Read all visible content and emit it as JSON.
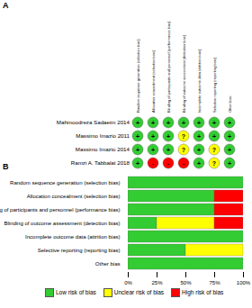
{
  "panel_a": {
    "title": "A",
    "domains": [
      "Random sequence generation (selection bias)",
      "Allocation concealment (selection bias)",
      "Blinding of participants and personnel (performance bias)",
      "Blinding of outcome assessment (detection bias)",
      "Incomplete outcome data (attrition bias)",
      "Selective reporting (reporting bias)",
      "Other bias"
    ],
    "studies": [
      {
        "name": "Mahmoodreza Sadaeim 2014",
        "judgements": [
          "+",
          "+",
          "+",
          "+",
          "+",
          "+",
          "+"
        ]
      },
      {
        "name": "Massimo Imazio 2011",
        "judgements": [
          "+",
          "+",
          "+",
          "?",
          "+",
          "+",
          "+"
        ]
      },
      {
        "name": "Massimo Imazio 2014",
        "judgements": [
          "+",
          "+",
          "+",
          "?",
          "+",
          "?",
          "+"
        ]
      },
      {
        "name": "Ramzi A. Tabbalat 2018",
        "judgements": [
          "+",
          "-",
          "-",
          "-",
          "+",
          "?",
          "+"
        ]
      }
    ],
    "colors": {
      "+": "#33cc33",
      "?": "#ffff00",
      "-": "#ff0000"
    }
  },
  "chart_data": {
    "type": "bar",
    "title": "B",
    "orientation": "horizontal",
    "stacked": true,
    "categories": [
      "Random sequence generation (selection bias)",
      "Allocation concealment (selection bias)",
      "Blinding of participants and personnel (performance bias)",
      "Blinding of outcome assessment (detection bias)",
      "Incomplete outcome data (attrition bias)",
      "Selective reporting (reporting bias)",
      "Other bias"
    ],
    "series": [
      {
        "name": "Low risk of bias",
        "color": "#33cc33",
        "values": [
          100,
          75,
          75,
          25,
          100,
          50,
          100
        ]
      },
      {
        "name": "Unclear risk of bias",
        "color": "#ffff00",
        "values": [
          0,
          0,
          0,
          50,
          0,
          50,
          0
        ]
      },
      {
        "name": "High risk of bias",
        "color": "#ff0000",
        "values": [
          0,
          25,
          25,
          25,
          0,
          0,
          0
        ]
      }
    ],
    "xlim": [
      0,
      100
    ],
    "xticks": [
      {
        "value": 0,
        "label": "0%"
      },
      {
        "value": 25,
        "label": "25%"
      },
      {
        "value": 50,
        "label": "50%"
      },
      {
        "value": 75,
        "label": "75%"
      },
      {
        "value": 100,
        "label": "100%"
      }
    ],
    "legend": "bottom"
  }
}
